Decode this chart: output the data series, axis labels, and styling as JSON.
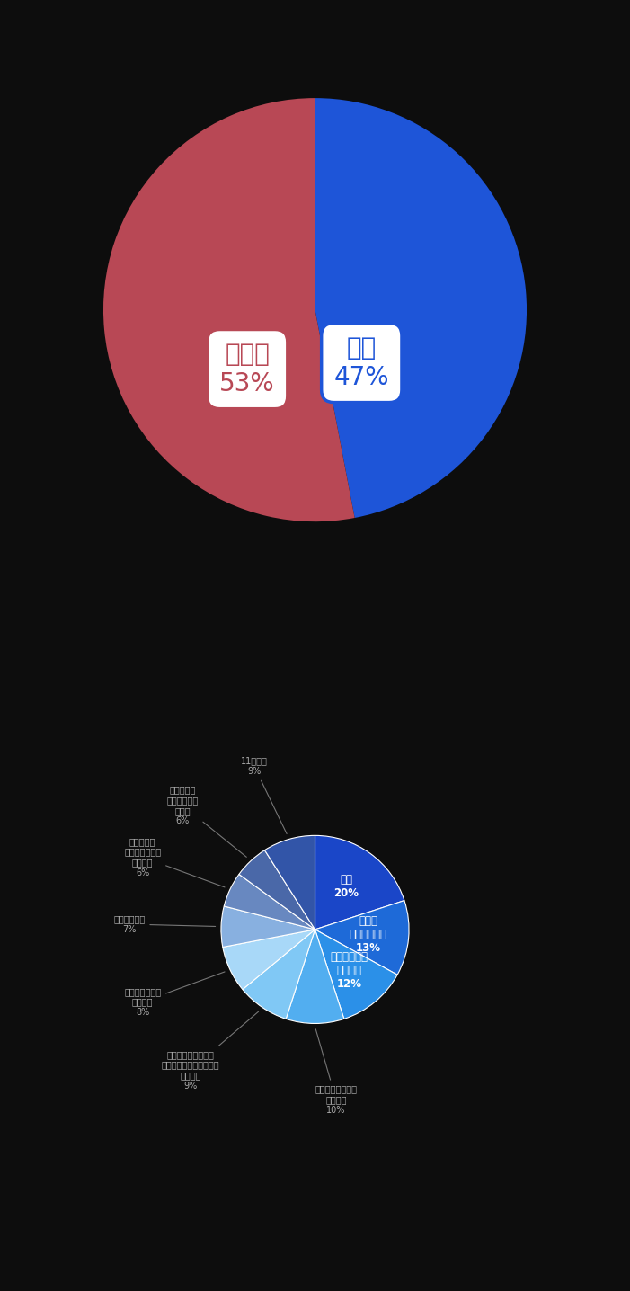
{
  "chart1": {
    "values": [
      47,
      53
    ],
    "colors": [
      "#1e55d8",
      "#b84855"
    ],
    "color_hai": "#1e55d8",
    "color_iie": "#b84855",
    "label_hai": "はい\n47%",
    "label_iie": "いいえ\n53%",
    "startangle": 90
  },
  "chart2": {
    "values": [
      20,
      13,
      12,
      10,
      9,
      8,
      7,
      6,
      6,
      9
    ],
    "colors": [
      "#1a46c8",
      "#1e6ad8",
      "#2b90e8",
      "#52aef0",
      "#80c8f5",
      "#a8d8f8",
      "#88b0e0",
      "#6888c0",
      "#4a68a8",
      "#3255a8"
    ],
    "inside_labels": [
      {
        "text": "騒音\n20%",
        "index": 0
      },
      {
        "text": "駐車、\n車のトラブル\n13%",
        "index": 1
      },
      {
        "text": "ペットの飼育\nやマナー\n12%",
        "index": 2
      }
    ],
    "outside_labels": [
      {
        "text": "ごみの不法投棄、\nポイ捥て\n10%",
        "index": 3
      },
      {
        "text": "理由が分からないが\n無視する、難癡をつける\n人がいる\n9%",
        "index": 4
      },
      {
        "text": "子供の泣き声や\nいたずら\n8%",
        "index": 5
      },
      {
        "text": "境界線の問題\n7%",
        "index": 6
      },
      {
        "text": "デマや嘔、\nのぞき見などの\n嫌がらせ\n6%",
        "index": 7
      },
      {
        "text": "集合住宅の\n共通部分等の\n使い方\n6%",
        "index": 8
      },
      {
        "text": "11位以降\n9%",
        "index": 9
      }
    ],
    "startangle": 90
  },
  "bg_color": "#0d0d0d",
  "fig_width": 7.01,
  "fig_height": 14.36
}
